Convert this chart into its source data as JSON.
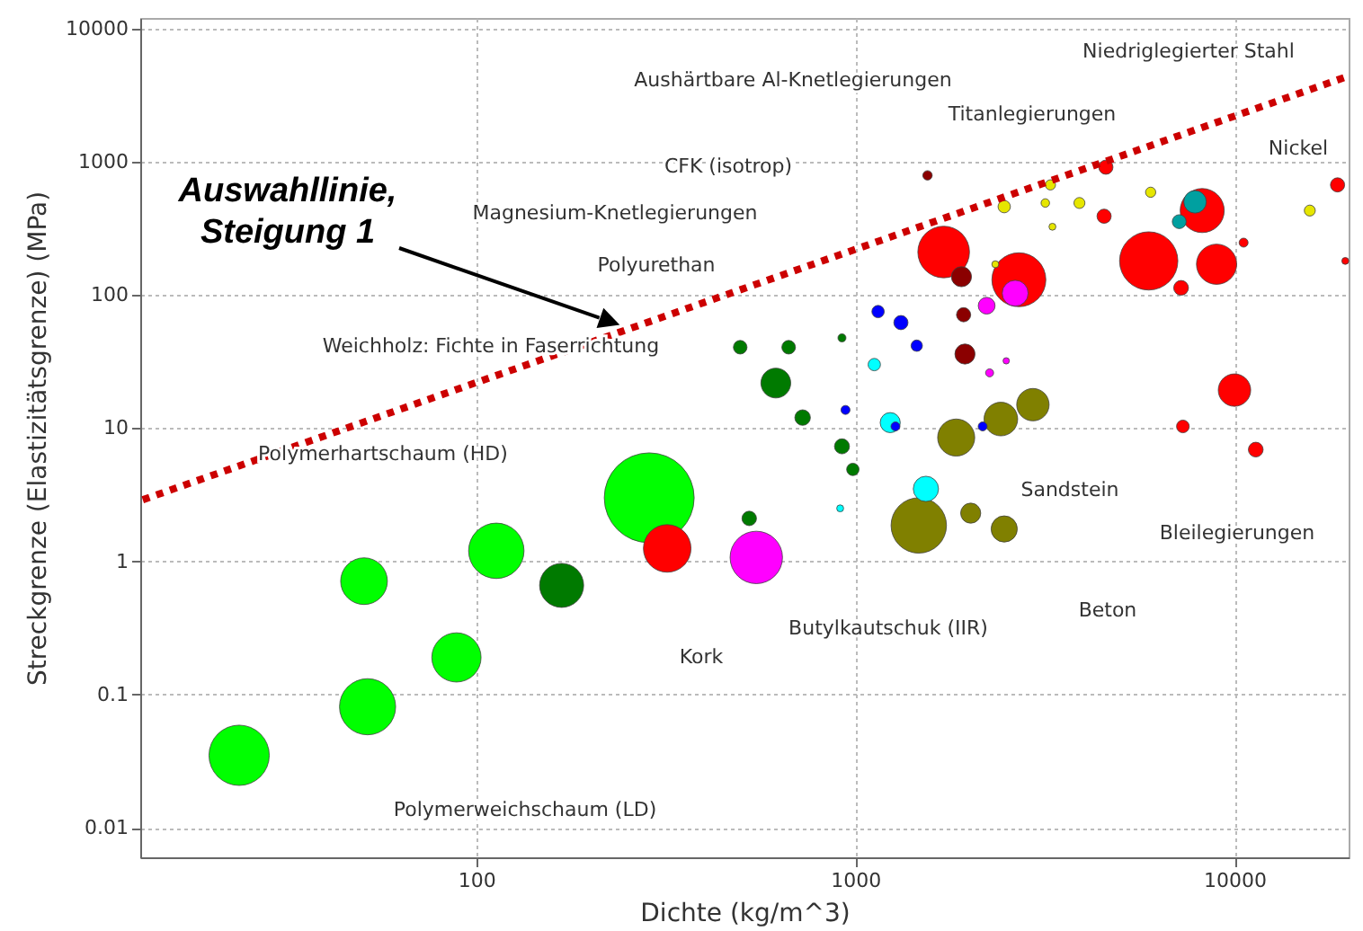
{
  "chart_data": {
    "type": "bubble",
    "xlabel": "Dichte (kg/m^3)",
    "ylabel": "Streckgrenze (Elastizitätsgrenze) (MPa)",
    "log": "xy",
    "grid": true,
    "marker": "circle",
    "xlim": [
      13,
      20000
    ],
    "xticks": [
      100,
      1000,
      10000
    ],
    "ylim": [
      0.006,
      12000
    ],
    "yticks": [
      0.01,
      0.1,
      1,
      10,
      100,
      1000,
      10000
    ],
    "series": [
      {
        "color": "#00ff00",
        "x": [
          23.7,
          50.6,
          51.7,
          88.7,
          113,
          286
        ],
        "values": [
          0.035,
          0.71,
          0.081,
          0.19,
          1.2,
          3.0
        ],
        "sizes": [
          0.45,
          0.27,
          0.39,
          0.3,
          0.38,
          1
        ]
      },
      {
        "color": "#007a00",
        "x": [
          168,
          525,
          497,
          667,
          617,
          726,
          922,
          985,
          922
        ],
        "values": [
          0.66,
          2.1,
          40.5,
          40.5,
          21.8,
          12,
          7.3,
          4.9,
          47.6
        ],
        "sizes": [
          0.24,
          0.026,
          0.023,
          0.023,
          0.11,
          0.03,
          0.028,
          0.019,
          0.008
        ]
      },
      {
        "color": "#0000ff",
        "x": [
          1148,
          1319,
          1452,
          942,
          1276,
          2167
        ],
        "values": [
          75,
          62,
          41.6,
          13.7,
          10.3,
          10.3
        ],
        "sizes": [
          0.019,
          0.025,
          0.016,
          0.01,
          0.01,
          0.01
        ]
      },
      {
        "color": "#00ffff",
        "x": [
          1535,
          912,
          1236,
          1122
        ],
        "values": [
          3.5,
          2.5,
          11,
          30
        ],
        "sizes": [
          0.079,
          0.006,
          0.05,
          0.019
        ]
      },
      {
        "color": "#00a0a0",
        "x": [
          7870,
          7150
        ],
        "values": [
          500,
          355
        ],
        "sizes": [
          0.063,
          0.024
        ]
      },
      {
        "color": "#ff0000",
        "x": [
          1710,
          2700,
          4580,
          4530,
          5940,
          8220,
          8970,
          7230,
          10000,
          7310,
          11380,
          18700,
          19600,
          10570,
          319
        ],
        "values": [
          210,
          130,
          910,
          390,
          180,
          430,
          170,
          113,
          19.3,
          10.3,
          6.9,
          670,
          180,
          247,
          1.25
        ],
        "sizes": [
          0.33,
          0.36,
          0.025,
          0.025,
          0.42,
          0.24,
          0.2,
          0.027,
          0.13,
          0.02,
          0.027,
          0.025,
          0.006,
          0.01,
          0.28
        ]
      },
      {
        "color": "#8b0000",
        "x": [
          1550,
          1905,
          1930,
          1946
        ],
        "values": [
          790,
          137,
          71,
          36
        ],
        "sizes": [
          0.011,
          0.05,
          0.025,
          0.05
        ]
      },
      {
        "color": "#ff00ff",
        "x": [
          2640,
          2220,
          2260,
          2500,
          548
        ],
        "values": [
          103,
          83,
          26,
          32,
          1.07
        ],
        "sizes": [
          0.083,
          0.035,
          0.008,
          0.005,
          0.34
        ]
      },
      {
        "color": "#e6e600",
        "x": [
          2470,
          3270,
          3170,
          3900,
          3310,
          6010,
          15800,
          2340
        ],
        "values": [
          460,
          670,
          490,
          490,
          325,
          590,
          430,
          170
        ],
        "sizes": [
          0.019,
          0.013,
          0.009,
          0.015,
          0.006,
          0.013,
          0.015,
          0.006
        ]
      },
      {
        "color": "#808000",
        "x": [
          1470,
          1845,
          2015,
          2420,
          2940,
          2470
        ],
        "values": [
          1.86,
          8.5,
          2.3,
          11.7,
          15,
          1.75
        ],
        "sizes": [
          0.38,
          0.17,
          0.05,
          0.14,
          0.13,
          0.085
        ]
      },
      {
        "type": "line",
        "color": "#cc0000",
        "line_style": "dotted",
        "marker": "none",
        "x": [
          13.2,
          20000
        ],
        "values": [
          2.9,
          4400
        ]
      }
    ],
    "annotations": [
      "Auswahllinie, Steigung 1",
      "Aushärtbare Al-Knetlegierungen",
      "Niedriglegierter Stahl",
      "Titanlegierungen",
      "CFK (isotrop)",
      "Nickel",
      "Magnesium-Knetlegierungen",
      "Polyurethan",
      "Weichholz: Fichte in Faserrichtung",
      "Polymerhartschaum (HD)",
      "Sandstein",
      "Bleilegierungen",
      "Kork",
      "Butylkautschuk (IIR)",
      "Beton",
      "Polymerweichschaum (LD)"
    ]
  }
}
